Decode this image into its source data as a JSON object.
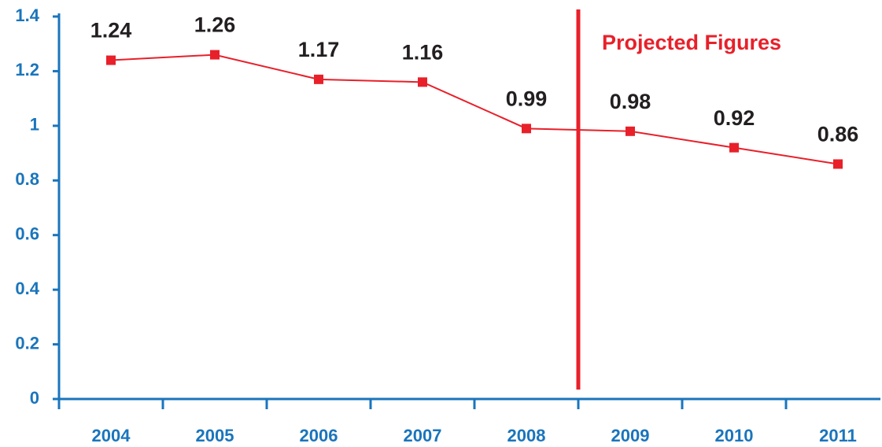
{
  "chart_data": {
    "type": "line",
    "categories": [
      "2004",
      "2005",
      "2006",
      "2007",
      "2008",
      "2009",
      "2010",
      "2011"
    ],
    "series": [
      {
        "color": "#e8202a",
        "values": [
          1.24,
          1.26,
          1.17,
          1.16,
          0.99,
          0.98,
          0.92,
          0.86
        ]
      }
    ],
    "ylim": [
      0,
      1.4
    ],
    "yticks": [
      0,
      0.2,
      0.4,
      0.6,
      0.8,
      1,
      1.2,
      1.4
    ],
    "annotations": [
      "Projected Figures"
    ],
    "axis_color": "#1a75bc",
    "grid": false
  }
}
